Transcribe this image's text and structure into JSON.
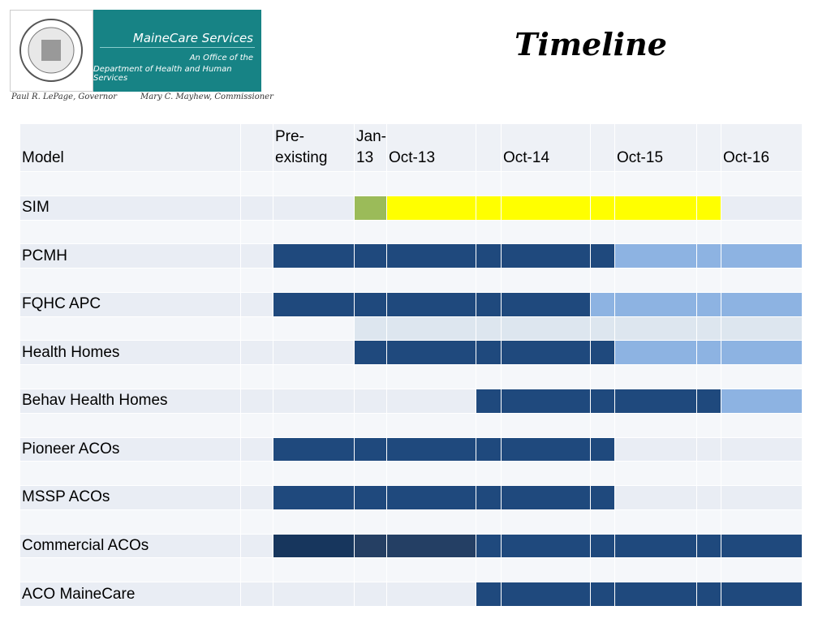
{
  "logo": {
    "name": "MaineCare Services",
    "line1": "An Office of the",
    "line2": "Department of Health and Human Services",
    "governor": "Paul R. LePage, Governor",
    "commissioner": "Mary C. Mayhew, Commissioner"
  },
  "title": "Timeline",
  "table": {
    "columns": [
      "Model",
      null,
      "Pre-existing",
      "Jan-13",
      "Oct-13",
      null,
      "Oct-14",
      null,
      "Oct-15",
      null,
      "Oct-16"
    ],
    "rows": [
      {
        "label": null,
        "cells": [
          null,
          null,
          null,
          null,
          null,
          null,
          null,
          null,
          null,
          null
        ]
      },
      {
        "label": "SIM",
        "cells": [
          null,
          null,
          "#9bbb59",
          "#ffff00",
          "#ffff00",
          "#ffff00",
          "#ffff00",
          "#ffff00",
          "#ffff00",
          null
        ]
      },
      {
        "label": null,
        "cells": [
          null,
          null,
          null,
          null,
          null,
          null,
          null,
          null,
          null,
          null
        ]
      },
      {
        "label": "PCMH",
        "cells": [
          null,
          "#1f497d",
          "#1f497d",
          "#1f497d",
          "#1f497d",
          "#1f497d",
          "#1f497d",
          "#8db3e2",
          "#8db3e2",
          "#8db3e2"
        ]
      },
      {
        "label": null,
        "cells": [
          null,
          null,
          null,
          null,
          null,
          null,
          null,
          null,
          null,
          null
        ]
      },
      {
        "label": "FQHC APC",
        "cells": [
          null,
          "#1f497d",
          "#1f497d",
          "#1f497d",
          "#1f497d",
          "#1f497d",
          "#8db3e2",
          "#8db3e2",
          "#8db3e2",
          "#8db3e2"
        ]
      },
      {
        "label": null,
        "cells": [
          null,
          null,
          "#dde6ef",
          "#dde6ef",
          "#dde6ef",
          "#dde6ef",
          "#dde6ef",
          "#dde6ef",
          "#dde6ef",
          "#dde6ef"
        ]
      },
      {
        "label": "Health Homes",
        "cells": [
          null,
          null,
          "#1f497d",
          "#1f497d",
          "#1f497d",
          "#1f497d",
          "#1f497d",
          "#8db3e2",
          "#8db3e2",
          "#8db3e2"
        ]
      },
      {
        "label": null,
        "cells": [
          null,
          null,
          null,
          null,
          null,
          null,
          null,
          null,
          null,
          null
        ]
      },
      {
        "label": "Behav Health Homes",
        "cells": [
          null,
          null,
          null,
          null,
          "#1f497d",
          "#1f497d",
          "#1f497d",
          "#1f497d",
          "#1f497d",
          "#8db3e2"
        ]
      },
      {
        "label": null,
        "cells": [
          null,
          null,
          null,
          null,
          null,
          null,
          null,
          null,
          null,
          null
        ]
      },
      {
        "label": "Pioneer ACOs",
        "cells": [
          null,
          "#1f497d",
          "#1f497d",
          "#1f497d",
          "#1f497d",
          "#1f497d",
          "#1f497d",
          null,
          null,
          null
        ]
      },
      {
        "label": null,
        "cells": [
          null,
          null,
          null,
          null,
          null,
          null,
          null,
          null,
          null,
          null
        ]
      },
      {
        "label": "MSSP ACOs",
        "cells": [
          null,
          "#1f497d",
          "#1f497d",
          "#1f497d",
          "#1f497d",
          "#1f497d",
          "#1f497d",
          null,
          null,
          null
        ]
      },
      {
        "label": null,
        "cells": [
          null,
          null,
          null,
          null,
          null,
          null,
          null,
          null,
          null,
          null
        ]
      },
      {
        "label": "Commercial ACOs",
        "cells": [
          null,
          "#17365d",
          "#253f63",
          "#243f64",
          "#1f497d",
          "#1f497d",
          "#1f497d",
          "#1f497d",
          "#1f497d",
          "#1f497d"
        ]
      },
      {
        "label": null,
        "cells": [
          null,
          null,
          null,
          null,
          null,
          null,
          null,
          null,
          null,
          null
        ]
      },
      {
        "label": "ACO MaineCare",
        "cells": [
          null,
          null,
          null,
          null,
          "#1f497d",
          "#1f497d",
          "#1f497d",
          "#1f497d",
          "#1f497d",
          "#1f497d"
        ]
      }
    ]
  }
}
